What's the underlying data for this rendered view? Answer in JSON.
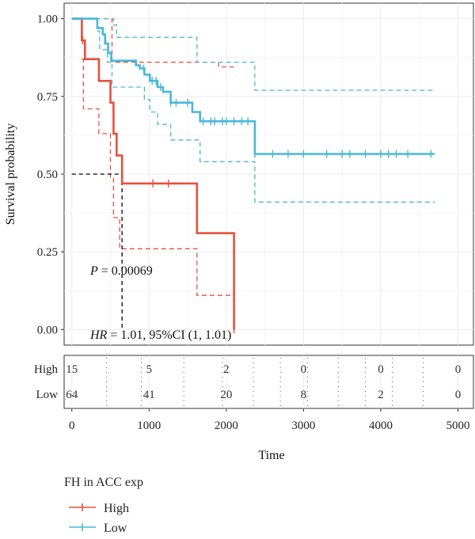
{
  "chart_data": {
    "type": "line",
    "subtype": "kaplan-meier",
    "xlabel": "Time",
    "ylabel": "Survival probability",
    "xlim": [
      -100,
      5200
    ],
    "ylim": [
      -0.05,
      1.05
    ],
    "x_ticks": [
      "0",
      "1000",
      "2000",
      "3000",
      "4000",
      "5000"
    ],
    "x_tick_values": [
      0,
      1000,
      2000,
      3000,
      4000,
      5000
    ],
    "y_ticks": [
      "0.00",
      "0.25",
      "0.50",
      "0.75",
      "1.00"
    ],
    "y_tick_values": [
      0,
      0.25,
      0.5,
      0.75,
      1.0
    ],
    "grid": true,
    "annotations": {
      "p_label": "P",
      "p_value": " = 0.00069",
      "hr_label": "HR",
      "hr_value": " = 1.01, 95%CI (1, 1.01)"
    },
    "median_reference": {
      "y": 0.5,
      "x": 650
    },
    "series": [
      {
        "name": "High",
        "color": "#e8503c",
        "steps": [
          [
            0,
            1.0
          ],
          [
            130,
            1.0
          ],
          [
            130,
            0.93
          ],
          [
            170,
            0.93
          ],
          [
            170,
            0.87
          ],
          [
            350,
            0.87
          ],
          [
            350,
            0.8
          ],
          [
            500,
            0.8
          ],
          [
            500,
            0.73
          ],
          [
            540,
            0.73
          ],
          [
            540,
            0.63
          ],
          [
            580,
            0.63
          ],
          [
            580,
            0.56
          ],
          [
            650,
            0.56
          ],
          [
            650,
            0.47
          ],
          [
            1620,
            0.47
          ],
          [
            1620,
            0.31
          ],
          [
            2100,
            0.31
          ],
          [
            2100,
            0.0
          ]
        ],
        "ci_upper": [
          [
            0,
            1.0
          ],
          [
            520,
            1.0
          ],
          [
            520,
            0.86
          ],
          [
            1900,
            0.86
          ],
          [
            1900,
            0.845
          ],
          [
            2100,
            0.845
          ]
        ],
        "ci_lower": [
          [
            130,
            0.87
          ],
          [
            150,
            0.87
          ],
          [
            150,
            0.71
          ],
          [
            350,
            0.71
          ],
          [
            350,
            0.63
          ],
          [
            500,
            0.63
          ],
          [
            500,
            0.49
          ],
          [
            540,
            0.49
          ],
          [
            540,
            0.36
          ],
          [
            620,
            0.36
          ],
          [
            620,
            0.26
          ],
          [
            1620,
            0.26
          ],
          [
            1620,
            0.11
          ],
          [
            2100,
            0.11
          ]
        ],
        "censor_x": [
          140,
          1050,
          1250,
          2100
        ]
      },
      {
        "name": "Low",
        "color": "#49b7d8",
        "steps": [
          [
            0,
            1.0
          ],
          [
            330,
            1.0
          ],
          [
            330,
            0.97
          ],
          [
            400,
            0.97
          ],
          [
            400,
            0.95
          ],
          [
            430,
            0.95
          ],
          [
            430,
            0.92
          ],
          [
            470,
            0.92
          ],
          [
            470,
            0.89
          ],
          [
            510,
            0.89
          ],
          [
            510,
            0.865
          ],
          [
            830,
            0.865
          ],
          [
            830,
            0.85
          ],
          [
            880,
            0.85
          ],
          [
            880,
            0.84
          ],
          [
            940,
            0.84
          ],
          [
            940,
            0.82
          ],
          [
            1010,
            0.82
          ],
          [
            1010,
            0.8
          ],
          [
            1110,
            0.8
          ],
          [
            1110,
            0.78
          ],
          [
            1180,
            0.78
          ],
          [
            1180,
            0.765
          ],
          [
            1280,
            0.765
          ],
          [
            1280,
            0.73
          ],
          [
            1560,
            0.73
          ],
          [
            1560,
            0.7
          ],
          [
            1660,
            0.7
          ],
          [
            1660,
            0.67
          ],
          [
            2370,
            0.67
          ],
          [
            2370,
            0.565
          ],
          [
            4700,
            0.565
          ]
        ],
        "ci_upper": [
          [
            0,
            1.0
          ],
          [
            540,
            1.0
          ],
          [
            540,
            0.98
          ],
          [
            580,
            0.98
          ],
          [
            580,
            0.94
          ],
          [
            1620,
            0.94
          ],
          [
            1620,
            0.86
          ],
          [
            2370,
            0.86
          ],
          [
            2370,
            0.77
          ],
          [
            4700,
            0.77
          ]
        ],
        "ci_lower": [
          [
            330,
            0.96
          ],
          [
            360,
            0.96
          ],
          [
            360,
            0.9
          ],
          [
            460,
            0.9
          ],
          [
            460,
            0.86
          ],
          [
            520,
            0.86
          ],
          [
            520,
            0.78
          ],
          [
            940,
            0.78
          ],
          [
            940,
            0.74
          ],
          [
            1010,
            0.74
          ],
          [
            1010,
            0.7
          ],
          [
            1110,
            0.7
          ],
          [
            1110,
            0.66
          ],
          [
            1280,
            0.66
          ],
          [
            1280,
            0.61
          ],
          [
            1660,
            0.61
          ],
          [
            1660,
            0.54
          ],
          [
            2370,
            0.54
          ],
          [
            2370,
            0.41
          ],
          [
            4700,
            0.41
          ]
        ],
        "censor_x": [
          930,
          1040,
          1090,
          1150,
          1280,
          1350,
          1500,
          1700,
          1800,
          1850,
          1950,
          2000,
          2100,
          2200,
          2280,
          2370,
          2600,
          2800,
          3000,
          3300,
          3500,
          3600,
          3800,
          4000,
          4100,
          4200,
          4350,
          4650
        ]
      }
    ],
    "risk_table": {
      "label_x": -100,
      "times": [
        0,
        1000,
        2000,
        3000,
        4000,
        5000
      ],
      "rows": [
        {
          "name": "High",
          "counts": [
            "15",
            "5",
            "2",
            "0",
            "0",
            "0"
          ]
        },
        {
          "name": "Low",
          "counts": [
            "64",
            "41",
            "20",
            "8",
            "2",
            "0"
          ]
        }
      ],
      "censor_ticks": [
        450,
        900,
        1450,
        1950,
        2350,
        2700,
        3050,
        3450,
        3800,
        4150,
        4550
      ]
    },
    "legend": {
      "title": "FH in ACC exp",
      "entries": [
        "High",
        "Low"
      ],
      "position": "bottom-left"
    }
  }
}
